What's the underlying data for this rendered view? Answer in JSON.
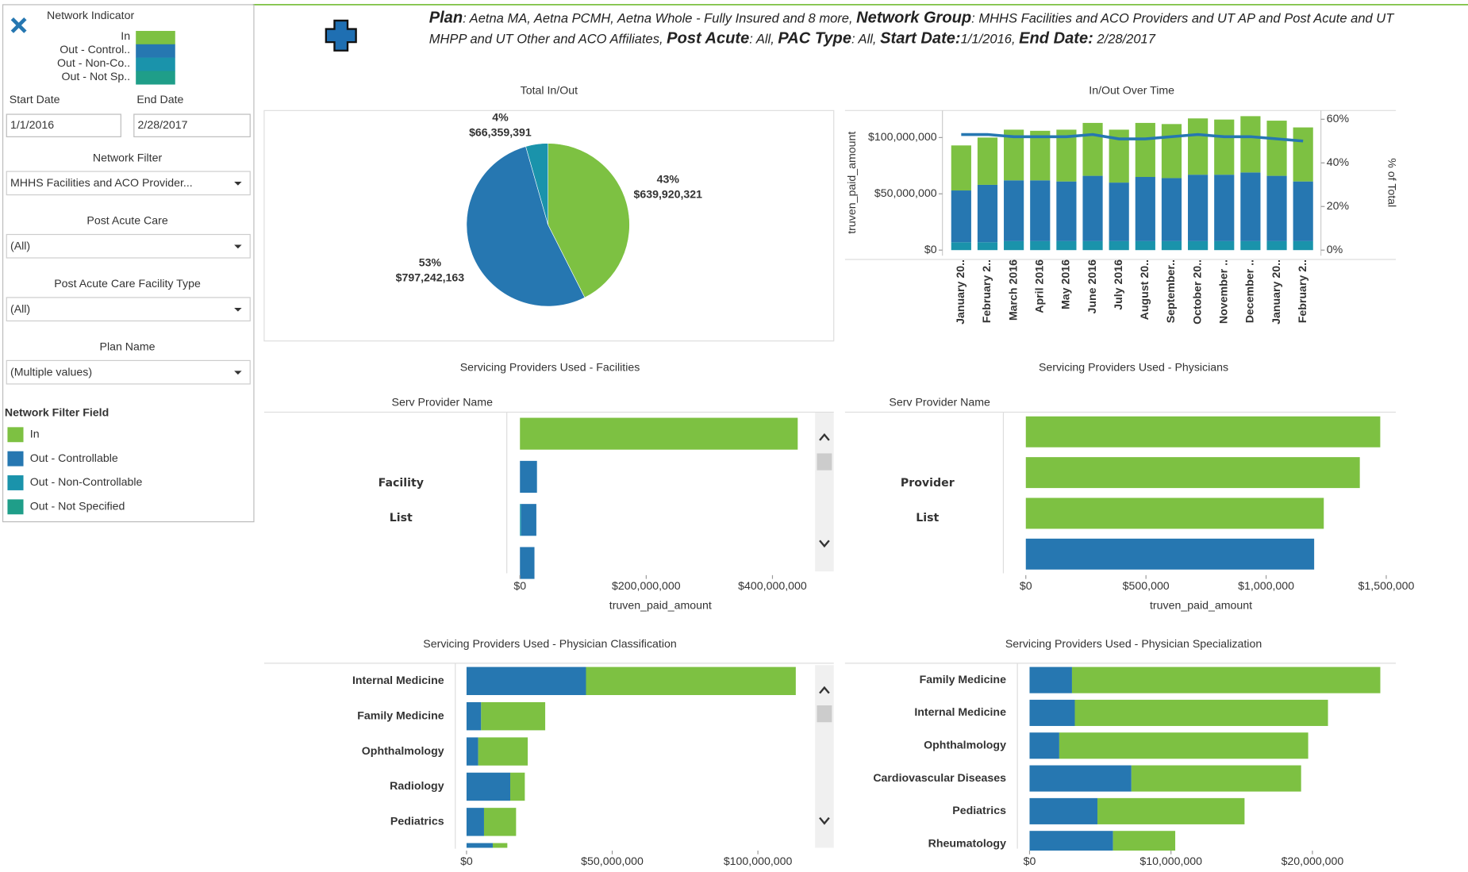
{
  "header": {
    "runs": [
      {
        "text": "Plan",
        "bold": true
      },
      {
        "text": ": Aetna MA, Aetna PCMH, Aetna Whole - Fully Insured and 8 more, ",
        "bold": false
      },
      {
        "text": "Network Group",
        "bold": true
      },
      {
        "text": ": MHHS Facilities and ACO Providers and UT AP and Post Acute and UT MHPP and UT Other and ACO Affiliates, ",
        "bold": false
      },
      {
        "text": "Post Acute",
        "bold": true
      },
      {
        "text": ": All, ",
        "bold": false
      },
      {
        "text": "PAC Type",
        "bold": true
      },
      {
        "text": ": All, ",
        "bold": false
      },
      {
        "text": "Start Date:",
        "bold": true
      },
      {
        "text": "1/1/2016, ",
        "bold": false
      },
      {
        "text": "End Date:",
        "bold": true
      },
      {
        "text": " 2/28/2017",
        "bold": false
      }
    ]
  },
  "sidebar": {
    "network_indicator": {
      "title": "Network Indicator",
      "items": [
        {
          "label": "In",
          "color": "#7dc142"
        },
        {
          "label": "Out - Control..",
          "color": "#2677b1"
        },
        {
          "label": "Out - Non-Co..",
          "color": "#1a93ab"
        },
        {
          "label": "Out - Not Sp..",
          "color": "#1f9e89"
        }
      ]
    },
    "start_date": {
      "label": "Start Date",
      "value": "1/1/2016"
    },
    "end_date": {
      "label": "End Date",
      "value": "2/28/2017"
    },
    "filters": [
      {
        "label": "Network Filter",
        "value": "MHHS Facilities and ACO Provider..."
      },
      {
        "label": "Post Acute Care",
        "value": "(All)"
      },
      {
        "label": "Post Acute Care Facility Type",
        "value": "(All)"
      },
      {
        "label": "Plan Name",
        "value": "(Multiple values)"
      }
    ],
    "legend": {
      "title": "Network Filter Field",
      "items": [
        {
          "label": "In",
          "color": "#7dc142"
        },
        {
          "label": "Out - Controllable",
          "color": "#2677b1"
        },
        {
          "label": "Out - Non-Controllable",
          "color": "#1a93ab"
        },
        {
          "label": "Out - Not Specified",
          "color": "#1f9e89"
        }
      ]
    }
  },
  "chart_data": [
    {
      "type": "pie",
      "title": "Total In/Out",
      "values": [
        639920321,
        797242163,
        66359391
      ],
      "value_labels": [
        "$639,920,321",
        "$797,242,163",
        "$66,359,391"
      ],
      "percent_labels": [
        "43%",
        "53%",
        "4%"
      ],
      "colors": [
        "#7dc142",
        "#2677b1",
        "#1a93ab"
      ]
    },
    {
      "type": "combo",
      "title": "In/Out Over Time",
      "categories": [
        "January 20..",
        "February 2..",
        "March 2016",
        "April 2016",
        "May 2016",
        "June 2016",
        "July 2016",
        "August 20..",
        "September..",
        "October 20..",
        "November ..",
        "December ..",
        "January 20..",
        "February 2.."
      ],
      "series": [
        {
          "color": "#1a93ab",
          "values": [
            7000000,
            7000000,
            8000000,
            8000000,
            8000000,
            8000000,
            8000000,
            8000000,
            8000000,
            8000000,
            8000000,
            8000000,
            8000000,
            8000000
          ]
        },
        {
          "color": "#2677b1",
          "values": [
            46000000,
            51000000,
            54000000,
            54000000,
            53000000,
            58000000,
            52000000,
            57000000,
            56000000,
            59000000,
            59000000,
            61000000,
            58000000,
            53000000
          ]
        },
        {
          "color": "#7dc142",
          "values": [
            40000000,
            42000000,
            45000000,
            44000000,
            46000000,
            47000000,
            47000000,
            48000000,
            48000000,
            50000000,
            49000000,
            50000000,
            49000000,
            48000000
          ]
        },
        {
          "type": "line",
          "axis": "y2",
          "color": "#2677b1",
          "values": [
            53,
            53,
            52,
            52,
            52,
            53,
            51,
            51,
            52,
            53,
            52,
            52,
            51,
            50
          ]
        }
      ],
      "ylabel": "truven_paid_amount",
      "y2label": "% of Total",
      "ylim": [
        0,
        124000000
      ],
      "yticks": [
        {
          "value": 0,
          "label": "$0"
        },
        {
          "value": 50000000,
          "label": "$50,000,000"
        },
        {
          "value": 100000000,
          "label": "$100,000,000"
        }
      ],
      "y2lim": [
        0,
        64
      ],
      "y2ticks": [
        {
          "value": 0,
          "label": "0%"
        },
        {
          "value": 20,
          "label": "20%"
        },
        {
          "value": 40,
          "label": "40%"
        },
        {
          "value": 60,
          "label": "60%"
        }
      ]
    },
    {
      "type": "bar",
      "orientation": "horizontal",
      "title": "Servicing Providers Used - Facilities",
      "ylabel": "Serv Provider Name",
      "xlabel": "truven_paid_amount",
      "overlay": [
        "Facility",
        "List"
      ],
      "categories": [
        null,
        null,
        null,
        null
      ],
      "series": [
        {
          "color": "#1a93ab",
          "values": [
            null,
            null,
            2000000,
            null
          ]
        },
        {
          "color": "#2677b1",
          "values": [
            null,
            27000000,
            24000000,
            23000000
          ]
        },
        {
          "color": "#7dc142",
          "values": [
            440000000,
            null,
            null,
            null
          ]
        }
      ],
      "xlim": [
        0,
        460000000
      ],
      "xticks": [
        {
          "value": 0,
          "label": "$0"
        },
        {
          "value": 200000000,
          "label": "$200,000,000"
        },
        {
          "value": 400000000,
          "label": "$400,000,000"
        }
      ]
    },
    {
      "type": "bar",
      "orientation": "horizontal",
      "title": "Servicing Providers Used - Physicians",
      "ylabel": "Serv Provider Name",
      "xlabel": "truven_paid_amount",
      "overlay": [
        "Provider",
        "List"
      ],
      "categories": [
        null,
        null,
        null,
        null
      ],
      "series": [
        {
          "color": "#2677b1",
          "values": [
            null,
            null,
            null,
            1200000
          ]
        },
        {
          "color": "#7dc142",
          "values": [
            1475000,
            1390000,
            1240000,
            null
          ]
        }
      ],
      "xlim": [
        0,
        1540000
      ],
      "xticks": [
        {
          "value": 0,
          "label": "$0"
        },
        {
          "value": 500000,
          "label": "$500,000"
        },
        {
          "value": 1000000,
          "label": "$1,000,000"
        },
        {
          "value": 1500000,
          "label": "$1,500,000"
        }
      ]
    },
    {
      "type": "bar",
      "orientation": "horizontal",
      "title": "Servicing Providers Used - Physician Classification",
      "categories": [
        "Internal Medicine",
        "Family Medicine",
        "Ophthalmology",
        "Radiology",
        "Pediatrics",
        null
      ],
      "series": [
        {
          "color": "#2677b1",
          "values": [
            41000000,
            5000000,
            4000000,
            15000000,
            6000000,
            9000000
          ]
        },
        {
          "color": "#7dc142",
          "values": [
            72000000,
            22000000,
            17000000,
            5000000,
            11000000,
            5000000
          ]
        }
      ],
      "xlim": [
        0,
        118000000
      ],
      "xticks": [
        {
          "value": 0,
          "label": "$0"
        },
        {
          "value": 50000000,
          "label": "$50,000,000"
        },
        {
          "value": 100000000,
          "label": "$100,000,000"
        }
      ]
    },
    {
      "type": "bar",
      "orientation": "horizontal",
      "title": "Servicing Providers Used - Physician Specialization",
      "categories": [
        "Family Medicine",
        "Internal Medicine",
        "Ophthalmology",
        "Cardiovascular Diseases",
        "Pediatrics",
        "Rheumatology"
      ],
      "series": [
        {
          "color": "#2677b1",
          "values": [
            3000000,
            3200000,
            2100000,
            7200000,
            4800000,
            5900000
          ]
        },
        {
          "color": "#7dc142",
          "values": [
            21800000,
            17900000,
            17600000,
            12000000,
            10400000,
            4400000
          ]
        }
      ],
      "xlim": [
        0,
        25900000
      ],
      "xticks": [
        {
          "value": 0,
          "label": "$0"
        },
        {
          "value": 10000000,
          "label": "$10,000,000"
        },
        {
          "value": 20000000,
          "label": "$20,000,000"
        }
      ]
    }
  ]
}
